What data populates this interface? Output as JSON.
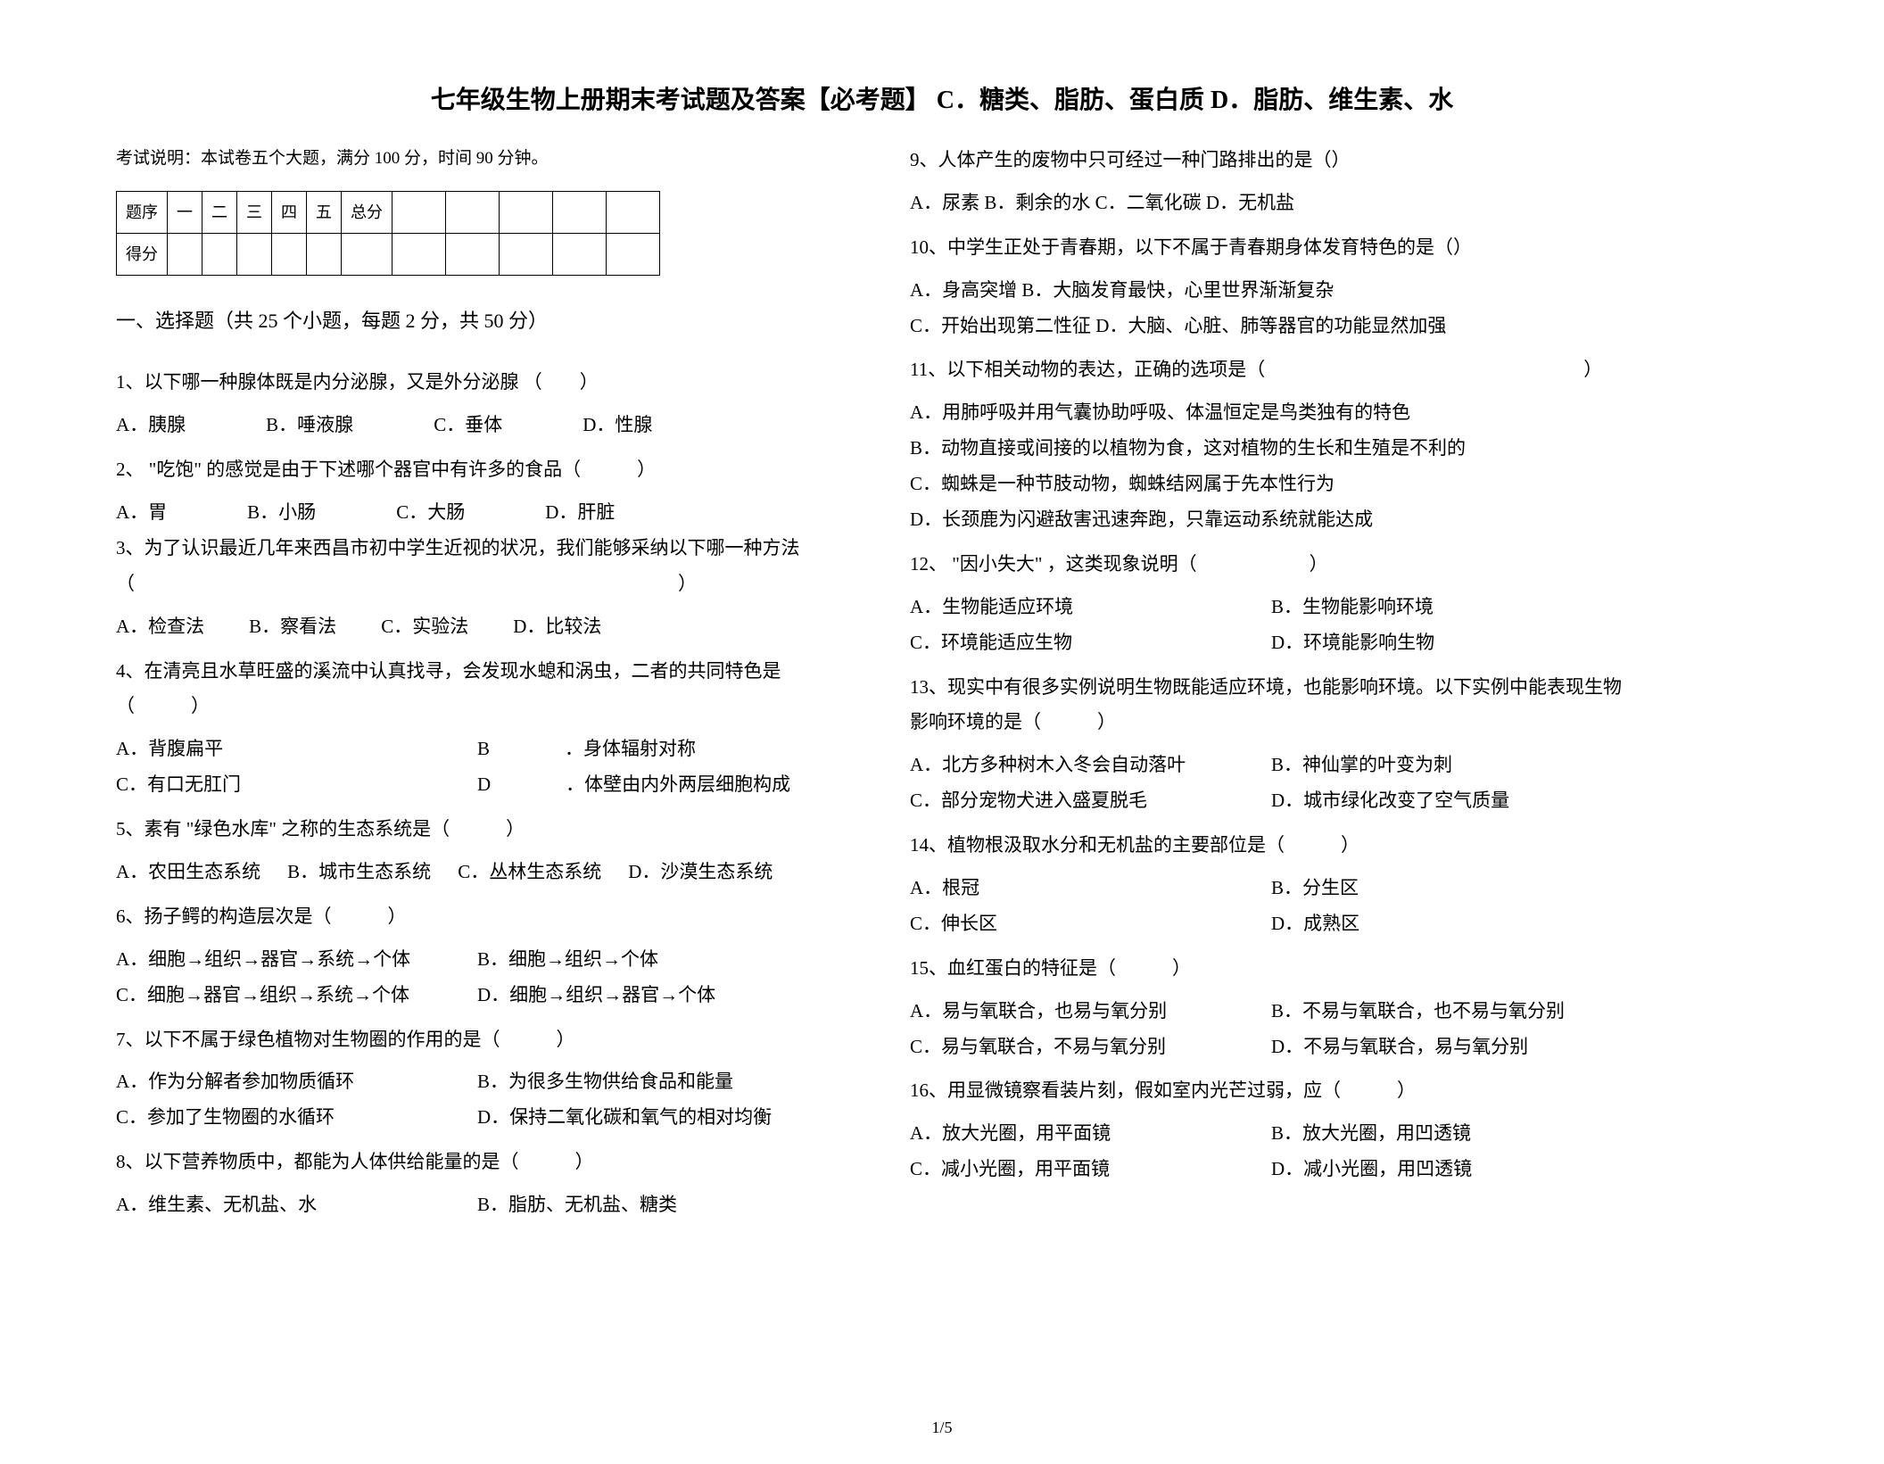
{
  "title_main": "七年级生物上册期末考试题及答案【必考题】",
  "title_append": "C．糖类、脂肪、蛋白质 D．脂肪、维生素、水",
  "exam_note": "考试说明：本试卷五个大题，满分 100 分，时间 90 分钟。",
  "score_table": {
    "row1": [
      "题序",
      "一",
      "二",
      "三",
      "四",
      "五",
      "总分",
      "",
      "",
      "",
      "",
      ""
    ],
    "row2": [
      "得分",
      "",
      "",
      "",
      "",
      "",
      "",
      "",
      "",
      "",
      "",
      ""
    ]
  },
  "section1_title": "一、选择题（共 25 个小题，每题 2 分，共 50 分）",
  "q1": {
    "text": "1、以下哪一种腺体既是内分泌腺，又是外分泌腺 （　　）",
    "opts": [
      "A．胰腺",
      "B．唾液腺",
      "C．垂体",
      "D．性腺"
    ]
  },
  "q2": {
    "text": "2、 \"吃饱\" 的感觉是由于下述哪个器官中有许多的食品（　　　）",
    "opts": [
      "A．胃",
      "B．小肠",
      "C．大肠",
      "D．肝脏"
    ]
  },
  "q3": {
    "text": "3、为了认识最近几年来西昌市初中学生近视的状况，我们能够采纳以下哪一种方法（　　　　　　　　　　　　　　　　　　　　　　　　　　　　　）",
    "opts": [
      "A．检查法",
      "B．察看法",
      "C．实验法",
      "D．比较法"
    ]
  },
  "q4": {
    "text": "4、在清亮且水草旺盛的溪流中认真找寻，会发现水螅和涡虫，二者的共同特色是（　　　）",
    "opts": [
      "A．背腹扁平",
      "B　　　　．身体辐射对称",
      "C．有口无肛门",
      "D　　　　．体壁由内外两层细胞构成"
    ]
  },
  "q5": {
    "text": "5、素有 \"绿色水库\" 之称的生态系统是（　　　）",
    "opts": [
      "A．农田生态系统",
      "B．城市生态系统",
      "C．丛林生态系统",
      "D．沙漠生态系统"
    ]
  },
  "q6": {
    "text": "6、扬子鳄的构造层次是（　　　）",
    "opts": [
      "A．细胞→组织→器官→系统→个体",
      "B．细胞→组织→个体",
      "C．细胞→器官→组织→系统→个体",
      "D．细胞→组织→器官→个体"
    ]
  },
  "q7": {
    "text": "7、以下不属于绿色植物对生物圈的作用的是（　　　）",
    "opts": [
      "A．作为分解者参加物质循环",
      "B．为很多生物供给食品和能量",
      "C．参加了生物圈的水循环",
      "D．保持二氧化碳和氧气的相对均衡"
    ]
  },
  "q8": {
    "text": "8、以下营养物质中，都能为人体供给能量的是（　　　）",
    "opts": [
      "A．维生素、无机盐、水",
      "B．脂肪、无机盐、糖类"
    ]
  },
  "q9": {
    "text": "9、人体产生的废物中只可经过一种门路排出的是（）",
    "opts": "A．尿素 B．剩余的水 C．二氧化碳 D．无机盐"
  },
  "q10": {
    "text": "10、中学生正处于青春期，以下不属于青春期身体发育特色的是（）",
    "opts": [
      "A．身高突增 B．大脑发育最快，心里世界渐渐复杂",
      "C．开始出现第二性征 D．大脑、心脏、肺等器官的功能显然加强"
    ]
  },
  "q11": {
    "text": "11、以下相关动物的表达，正确的选项是（　　　　　　　　　　　　　　　　　）",
    "opts": [
      "A．用肺呼吸并用气囊协助呼吸、体温恒定是鸟类独有的特色",
      "B．动物直接或间接的以植物为食，这对植物的生长和生殖是不利的",
      "C．蜘蛛是一种节肢动物，蜘蛛结网属于先本性行为",
      "D．长颈鹿为闪避敌害迅速奔跑，只靠运动系统就能达成"
    ]
  },
  "q12": {
    "text": "12、 \"因小失大\" ，这类现象说明（　　　　　　）",
    "opts": [
      "A．生物能适应环境",
      "B．生物能影响环境",
      "C．环境能适应生物",
      "D．环境能影响生物"
    ]
  },
  "q13": {
    "text": "13、现实中有很多实例说明生物既能适应环境，也能影响环境。以下实例中能表现生物影响环境的是（　　　）",
    "opts": [
      "A．北方多种树木入冬会自动落叶",
      "B．神仙掌的叶变为刺",
      "C．部分宠物犬进入盛夏脱毛",
      "D．城市绿化改变了空气质量"
    ]
  },
  "q14": {
    "text": "14、植物根汲取水分和无机盐的主要部位是（　　　）",
    "opts": [
      "A．根冠",
      "B．分生区",
      "C．伸长区",
      "D．成熟区"
    ]
  },
  "q15": {
    "text": "15、血红蛋白的特征是（　　　）",
    "opts": [
      "A．易与氧联合，也易与氧分别",
      "B．不易与氧联合，也不易与氧分别",
      "C．易与氧联合，不易与氧分别",
      "D．不易与氧联合，易与氧分别"
    ]
  },
  "q16": {
    "text": "16、用显微镜察看装片刻，假如室内光芒过弱，应（　　　）",
    "opts": [
      "A．放大光圈，用平面镜",
      "B．放大光圈，用凹透镜",
      "C．减小光圈，用平面镜",
      "D．减小光圈，用凹透镜"
    ]
  },
  "page_num": "1/5"
}
